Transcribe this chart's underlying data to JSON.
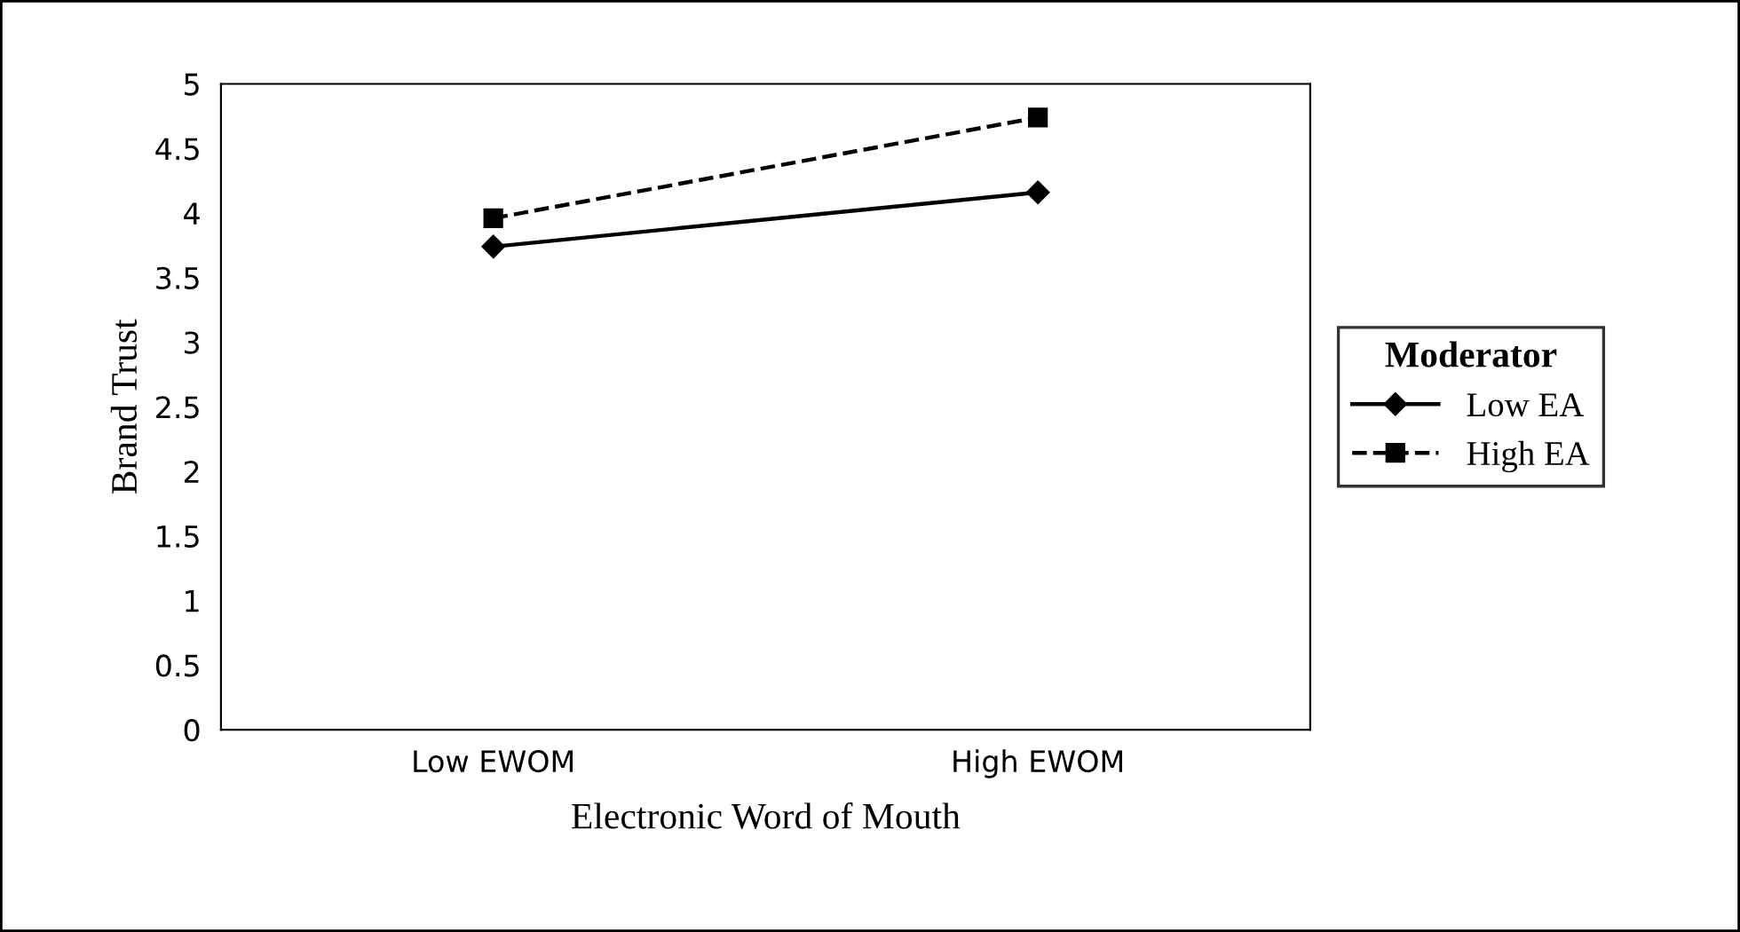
{
  "chart_data": {
    "type": "line",
    "xlabel": "Electronic Word of Mouth",
    "ylabel": "Brand Trust",
    "legend_title": "Moderator",
    "categories": [
      "Low EWOM",
      "High EWOM"
    ],
    "series": [
      {
        "name": "Low EA",
        "color": "#000000",
        "values": [
          3.74,
          4.16
        ],
        "marker": "diamond",
        "line_style": "solid"
      },
      {
        "name": "High EA",
        "color": "#000000",
        "values": [
          3.96,
          4.74
        ],
        "marker": "square",
        "line_style": "dashed"
      }
    ],
    "ylim": [
      0,
      5
    ],
    "yticks": [
      0,
      0.5,
      1,
      1.5,
      2,
      2.5,
      3,
      3.5,
      4,
      4.5,
      5
    ],
    "grid": false,
    "legend": "right"
  }
}
